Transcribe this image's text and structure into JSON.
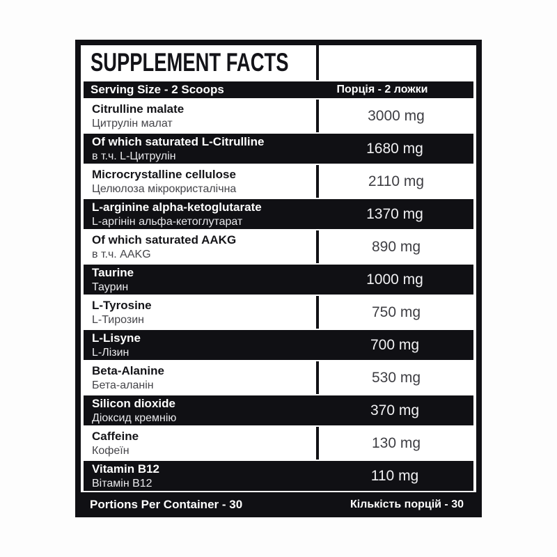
{
  "label": {
    "title": "SUPPLEMENT FACTS",
    "serving": {
      "en": "Serving Size - 2 Scoops",
      "uk": "Порція - 2 ложки"
    },
    "rows": [
      {
        "en": "Citrulline malate",
        "uk": "Цитрулін малат",
        "amount": "3000 mg"
      },
      {
        "en": "Of which saturated L-Citrulline",
        "uk": "в т.ч. L-Цитрулін",
        "amount": "1680 mg"
      },
      {
        "en": "Microcrystalline cellulose",
        "uk": "Целюлоза мікрокристалічна",
        "amount": "2110 mg"
      },
      {
        "en": "L-arginine alpha-ketoglutarate",
        "uk": "L-аргінін альфа-кетоглутарат",
        "amount": "1370 mg"
      },
      {
        "en": "Of which saturated AAKG",
        "uk": "в т.ч. AAKG",
        "amount": "890 mg"
      },
      {
        "en": "Taurine",
        "uk": "Таурин",
        "amount": "1000 mg"
      },
      {
        "en": "L-Tyrosine",
        "uk": "L-Тирозин",
        "amount": "750 mg"
      },
      {
        "en": "L-Lisyne",
        "uk": "L-Лізин",
        "amount": "700 mg"
      },
      {
        "en": "Beta-Alanine",
        "uk": "Бета-аланін",
        "amount": "530 mg"
      },
      {
        "en": "Silicon dioxide",
        "uk": "Діоксид кремнію",
        "amount": "370 mg"
      },
      {
        "en": "Caffeine",
        "uk": "Кофеїн",
        "amount": "130 mg"
      },
      {
        "en": "Vitamin B12",
        "uk": "Вітамін B12",
        "amount": "110 mg"
      }
    ],
    "footer": {
      "en": "Portions Per Container - 30",
      "uk": "Кількість порцій - 30"
    },
    "colors": {
      "frame_black": "#101014",
      "amount_gray": "#3e3e43",
      "background": "#fdfdfd"
    }
  }
}
